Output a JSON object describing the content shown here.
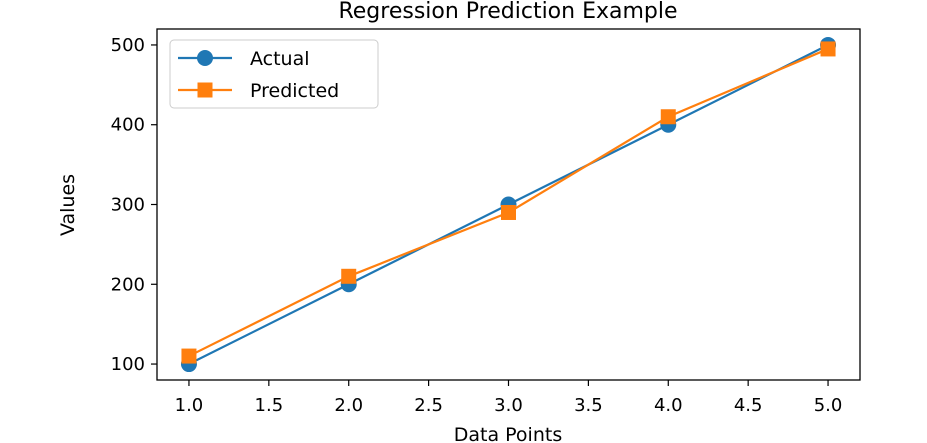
{
  "chart_data": {
    "type": "line",
    "title": "Regression Prediction Example",
    "xlabel": "Data Points",
    "ylabel": "Values",
    "x": [
      1.0,
      2.0,
      3.0,
      4.0,
      5.0
    ],
    "series": [
      {
        "name": "Actual",
        "values": [
          100,
          200,
          300,
          400,
          500
        ],
        "color": "#1f77b4",
        "marker": "circle"
      },
      {
        "name": "Predicted",
        "values": [
          110,
          210,
          290,
          410,
          495
        ],
        "color": "#ff7f0e",
        "marker": "square"
      }
    ],
    "xlim": [
      0.8,
      5.2
    ],
    "ylim": [
      80,
      520
    ],
    "xticks": [
      "1.0",
      "1.5",
      "2.0",
      "2.5",
      "3.0",
      "3.5",
      "4.0",
      "4.5",
      "5.0"
    ],
    "yticks": [
      "100",
      "200",
      "300",
      "400",
      "500"
    ],
    "grid": false,
    "legend_position": "upper-left"
  }
}
